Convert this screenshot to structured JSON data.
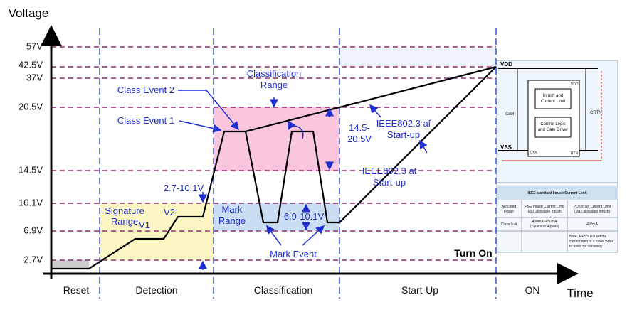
{
  "axis": {
    "y_label": "Voltage",
    "x_label": "Time"
  },
  "voltage_levels": [
    "57V",
    "42.5V",
    "37V",
    "20.5V",
    "14.5V",
    "10.1V",
    "6.9V",
    "2.7V"
  ],
  "phases": [
    "Reset",
    "Detection",
    "Classification",
    "Start-Up",
    "ON"
  ],
  "annotations": {
    "classification_range": [
      "Classification",
      "Range"
    ],
    "class_event_2": "Class Event 2",
    "class_event_1": "Class Event 1",
    "class_range_value": [
      "14.5-",
      "20.5V"
    ],
    "af_startup": [
      "IEEE802.3 af",
      "Start-up"
    ],
    "at_startup": [
      "IEEE802.3 at",
      "Start-up"
    ],
    "signature_value": "2.7-10.1V",
    "signature_range": [
      "Signature",
      "Range"
    ],
    "v1": "V1",
    "v2": "V2",
    "mark_range": [
      "Mark",
      "Range"
    ],
    "mark_value": "6.9-10.1V",
    "mark_event": "Mark Event",
    "turn_on": "Turn On"
  },
  "inset": {
    "vdd": "VDD",
    "vss": "VSS",
    "cdel": "Cdel",
    "crtn": "CRTN",
    "block1": [
      "Inrush and",
      "Current Limit"
    ],
    "block2": [
      "Control Logic",
      "and Gate Driver"
    ],
    "pin_vdd": "VDD",
    "pin_vss": "VSS",
    "pin_rtn": "RTN",
    "table_title": "IEEE standard Inrush Current Limit",
    "headers": [
      [
        "Allocated",
        "Power"
      ],
      [
        "PSE Inrush Current Limit",
        "(Max allowable Inrush)"
      ],
      [
        "PD Inrush Current Limit",
        "(Max allowable Inrush)"
      ]
    ],
    "row": [
      [
        "Class 0~4"
      ],
      [
        "400mA~450mA",
        "(2-pairs or 4-pairs)"
      ],
      [
        "400mA"
      ]
    ],
    "note": [
      "Note: MPS's PD set the",
      "current limit to a lower value",
      "to allow for variability"
    ]
  }
}
